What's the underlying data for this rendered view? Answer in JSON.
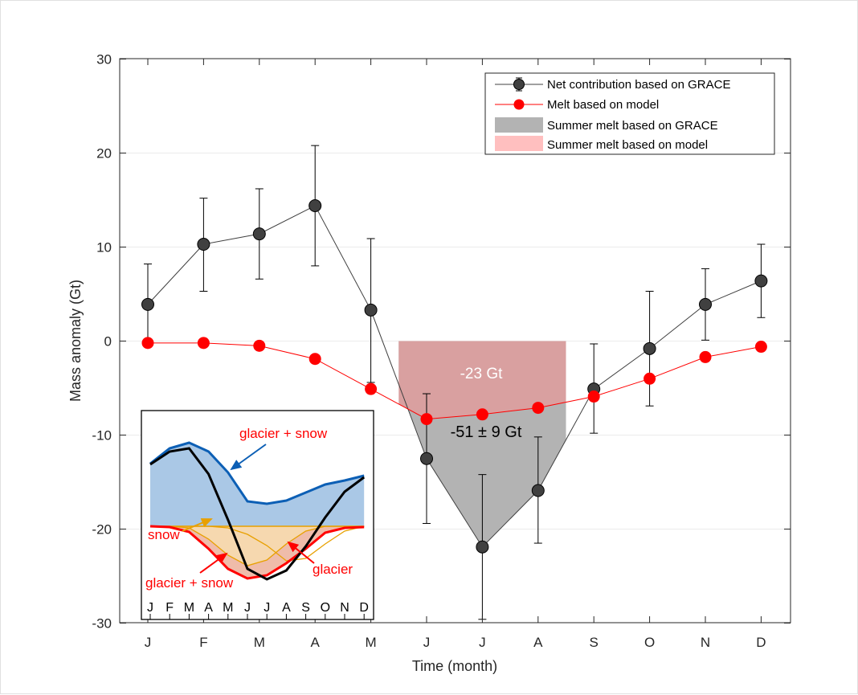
{
  "chart_data": {
    "type": "line",
    "xlabel": "Time (month)",
    "ylabel": "Mass anomaly (Gt)",
    "ylim": [
      -30,
      30
    ],
    "yticks": [
      -30,
      -20,
      -10,
      0,
      10,
      20,
      30
    ],
    "categories": [
      "J",
      "F",
      "M",
      "A",
      "M",
      "J",
      "J",
      "A",
      "S",
      "O",
      "N",
      "D"
    ],
    "grid": true,
    "legend_placement": "top-right",
    "series": [
      {
        "name": "Net contribution based on GRACE",
        "color": "#404040",
        "values": [
          3.9,
          10.3,
          11.4,
          14.4,
          3.3,
          -12.5,
          -21.9,
          -15.9,
          -5.1,
          -0.8,
          3.9,
          6.4
        ],
        "err_high": [
          8.2,
          15.2,
          16.2,
          20.8,
          10.9,
          -5.6,
          -14.2,
          -10.2,
          -0.3,
          5.3,
          7.7,
          10.3
        ],
        "err_low": [
          -0.3,
          5.3,
          6.6,
          8.0,
          -4.4,
          -19.4,
          -29.6,
          -21.5,
          -9.8,
          -6.9,
          0.1,
          2.5
        ]
      },
      {
        "name": "Melt based on model",
        "color": "#ff0000",
        "values": [
          -0.2,
          -0.2,
          -0.5,
          -1.9,
          -5.1,
          -8.3,
          -7.8,
          -7.1,
          -5.9,
          -4.0,
          -1.7,
          -0.6
        ]
      }
    ],
    "areas": [
      {
        "name": "Summer melt based on GRACE",
        "color": "#b3b3b3",
        "label": "-51 ± 9 Gt"
      },
      {
        "name": "Summer melt based on model",
        "color": "#ffbfbf",
        "label": "-23 Gt"
      }
    ],
    "inset": {
      "categories": [
        "J",
        "F",
        "M",
        "A",
        "M",
        "J",
        "J",
        "A",
        "S",
        "O",
        "N",
        "D"
      ],
      "annotations": [
        {
          "text": "glacier + snow",
          "color": "#ff0000"
        },
        {
          "text": "snow",
          "color": "#ff0000"
        },
        {
          "text": "glacier + snow",
          "color": "#ff0000"
        },
        {
          "text": "glacier",
          "color": "#ff0000"
        }
      ],
      "colors": {
        "blue": "#0c5fb5",
        "black": "#000000",
        "red": "#ff0000",
        "orange": "#e8a000",
        "blue_fill": "#aac8e6",
        "snow_fill": "#f7ddb0",
        "glacier_fill": "#efbcaa"
      }
    }
  }
}
